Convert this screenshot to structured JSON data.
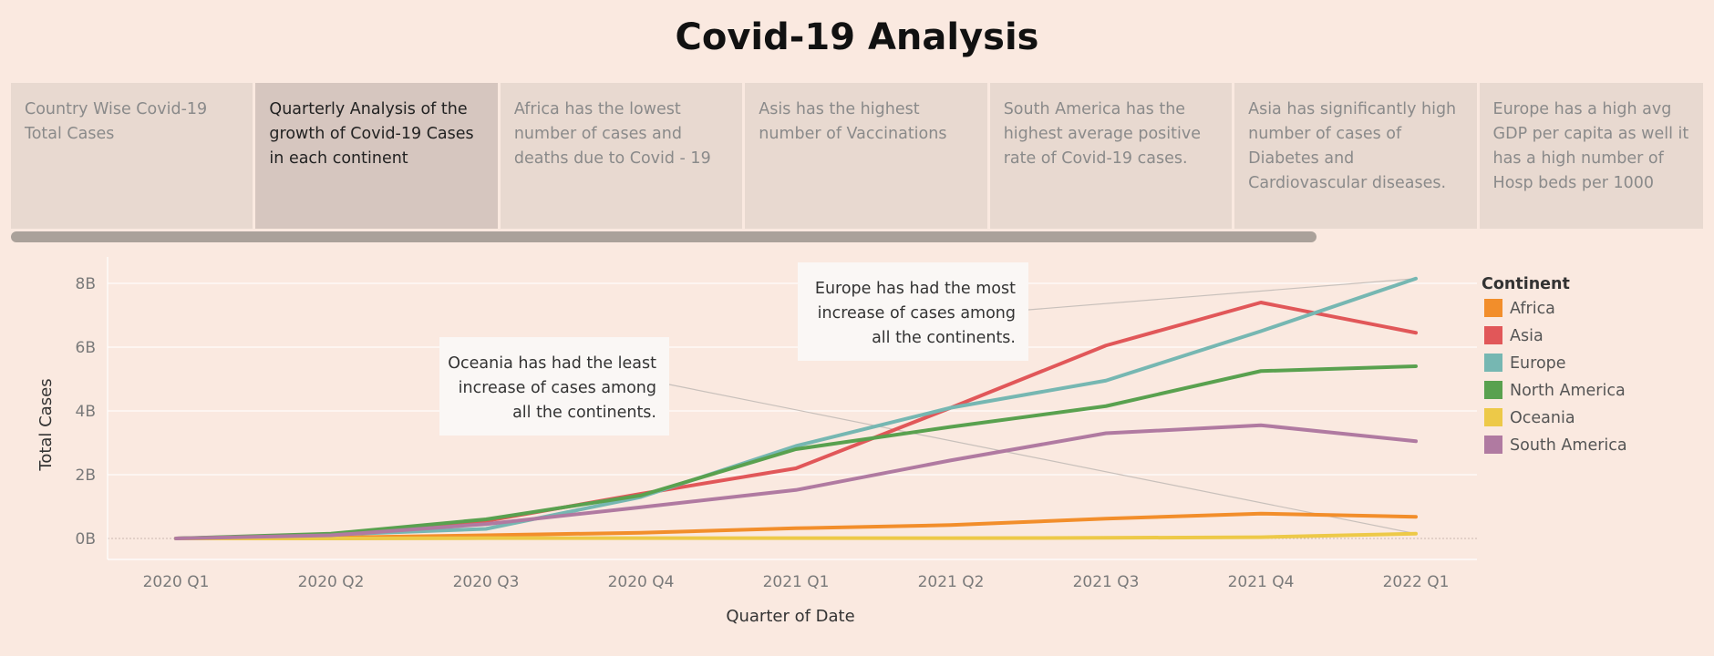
{
  "page": {
    "title": "Covid-19 Analysis"
  },
  "story_tabs": [
    {
      "label": "Country Wise Covid-19 Total Cases",
      "active": false
    },
    {
      "label": "Quarterly Analysis of the growth of Covid-19 Cases in each continent",
      "active": true
    },
    {
      "label": "Africa has the lowest number of cases and deaths due to Covid - 19",
      "active": false
    },
    {
      "label": "Asis has the highest number of Vaccinations",
      "active": false
    },
    {
      "label": "South America has the highest average  positive rate of Covid-19 cases.",
      "active": false
    },
    {
      "label": "Asia has significantly high number of cases of Diabetes and Cardiovascular diseases.",
      "active": false
    },
    {
      "label": "Europe has a high avg GDP per capita as well it has a high number of Hosp beds per 1000",
      "active": false
    }
  ],
  "chart_data": {
    "type": "line",
    "xlabel": "Quarter of Date",
    "ylabel": "Total Cases",
    "categories": [
      "2020 Q1",
      "2020 Q2",
      "2020 Q3",
      "2020 Q4",
      "2021 Q1",
      "2021 Q2",
      "2021 Q3",
      "2021 Q4",
      "2022 Q1"
    ],
    "ylim": [
      -0.6,
      8.6
    ],
    "yticks": [
      0,
      2,
      4,
      6,
      8
    ],
    "ytick_labels": [
      "0B",
      "2B",
      "4B",
      "6B",
      "8B"
    ],
    "grid": true,
    "legend": {
      "title": "Continent",
      "position": "right"
    },
    "series": [
      {
        "name": "Africa",
        "color": "#f28e2b",
        "values": [
          0.0,
          0.03,
          0.1,
          0.18,
          0.32,
          0.42,
          0.62,
          0.78,
          0.68
        ]
      },
      {
        "name": "Asia",
        "color": "#e15759",
        "values": [
          0.0,
          0.1,
          0.55,
          1.4,
          2.2,
          4.1,
          6.05,
          7.4,
          6.45
        ]
      },
      {
        "name": "Europe",
        "color": "#76b7b2",
        "values": [
          0.0,
          0.12,
          0.3,
          1.3,
          2.9,
          4.1,
          4.95,
          6.5,
          8.15
        ]
      },
      {
        "name": "North America",
        "color": "#59a14f",
        "values": [
          0.0,
          0.15,
          0.6,
          1.35,
          2.8,
          3.5,
          4.15,
          5.25,
          5.4
        ]
      },
      {
        "name": "Oceania",
        "color": "#edc948",
        "values": [
          0.0,
          0.0,
          0.01,
          0.01,
          0.01,
          0.01,
          0.02,
          0.04,
          0.15
        ]
      },
      {
        "name": "South America",
        "color": "#b07aa1",
        "values": [
          0.0,
          0.1,
          0.45,
          0.98,
          1.52,
          2.45,
          3.3,
          3.55,
          3.05
        ]
      }
    ],
    "annotations": [
      {
        "lines": [
          "Europe has had the most",
          "increase of cases among",
          "all the continents."
        ],
        "series": "Europe",
        "point": "2022 Q1"
      },
      {
        "lines": [
          "Oceania has had the least",
          "increase of cases among",
          "all the continents."
        ],
        "series": "Oceania",
        "point": "2022 Q1"
      }
    ]
  }
}
